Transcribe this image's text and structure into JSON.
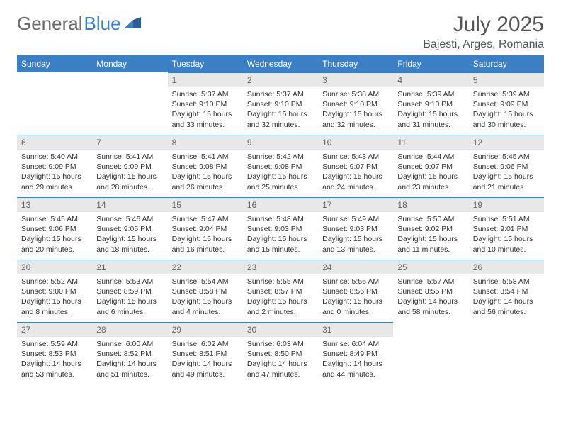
{
  "logo": {
    "part1": "General",
    "part2": "Blue"
  },
  "title": "July 2025",
  "location": "Bajesti, Arges, Romania",
  "colors": {
    "header_bg": "#3b7fc4",
    "header_text": "#ffffff",
    "daynum_bg": "#e8e8e8",
    "daynum_text": "#666666",
    "border": "#3b7fc4",
    "body_text": "#333333",
    "title_text": "#555555",
    "logo_gray": "#6b6b6b",
    "logo_blue": "#3b7fc4"
  },
  "day_header_fontsize": 12,
  "cell_fontsize": 10.5,
  "title_fontsize": 30,
  "location_fontsize": 16,
  "weekdays": [
    "Sunday",
    "Monday",
    "Tuesday",
    "Wednesday",
    "Thursday",
    "Friday",
    "Saturday"
  ],
  "weeks": [
    [
      null,
      null,
      {
        "n": "1",
        "sunrise": "5:37 AM",
        "sunset": "9:10 PM",
        "daylight": "15 hours and 33 minutes."
      },
      {
        "n": "2",
        "sunrise": "5:37 AM",
        "sunset": "9:10 PM",
        "daylight": "15 hours and 32 minutes."
      },
      {
        "n": "3",
        "sunrise": "5:38 AM",
        "sunset": "9:10 PM",
        "daylight": "15 hours and 32 minutes."
      },
      {
        "n": "4",
        "sunrise": "5:39 AM",
        "sunset": "9:10 PM",
        "daylight": "15 hours and 31 minutes."
      },
      {
        "n": "5",
        "sunrise": "5:39 AM",
        "sunset": "9:09 PM",
        "daylight": "15 hours and 30 minutes."
      }
    ],
    [
      {
        "n": "6",
        "sunrise": "5:40 AM",
        "sunset": "9:09 PM",
        "daylight": "15 hours and 29 minutes."
      },
      {
        "n": "7",
        "sunrise": "5:41 AM",
        "sunset": "9:09 PM",
        "daylight": "15 hours and 28 minutes."
      },
      {
        "n": "8",
        "sunrise": "5:41 AM",
        "sunset": "9:08 PM",
        "daylight": "15 hours and 26 minutes."
      },
      {
        "n": "9",
        "sunrise": "5:42 AM",
        "sunset": "9:08 PM",
        "daylight": "15 hours and 25 minutes."
      },
      {
        "n": "10",
        "sunrise": "5:43 AM",
        "sunset": "9:07 PM",
        "daylight": "15 hours and 24 minutes."
      },
      {
        "n": "11",
        "sunrise": "5:44 AM",
        "sunset": "9:07 PM",
        "daylight": "15 hours and 23 minutes."
      },
      {
        "n": "12",
        "sunrise": "5:45 AM",
        "sunset": "9:06 PM",
        "daylight": "15 hours and 21 minutes."
      }
    ],
    [
      {
        "n": "13",
        "sunrise": "5:45 AM",
        "sunset": "9:06 PM",
        "daylight": "15 hours and 20 minutes."
      },
      {
        "n": "14",
        "sunrise": "5:46 AM",
        "sunset": "9:05 PM",
        "daylight": "15 hours and 18 minutes."
      },
      {
        "n": "15",
        "sunrise": "5:47 AM",
        "sunset": "9:04 PM",
        "daylight": "15 hours and 16 minutes."
      },
      {
        "n": "16",
        "sunrise": "5:48 AM",
        "sunset": "9:03 PM",
        "daylight": "15 hours and 15 minutes."
      },
      {
        "n": "17",
        "sunrise": "5:49 AM",
        "sunset": "9:03 PM",
        "daylight": "15 hours and 13 minutes."
      },
      {
        "n": "18",
        "sunrise": "5:50 AM",
        "sunset": "9:02 PM",
        "daylight": "15 hours and 11 minutes."
      },
      {
        "n": "19",
        "sunrise": "5:51 AM",
        "sunset": "9:01 PM",
        "daylight": "15 hours and 10 minutes."
      }
    ],
    [
      {
        "n": "20",
        "sunrise": "5:52 AM",
        "sunset": "9:00 PM",
        "daylight": "15 hours and 8 minutes."
      },
      {
        "n": "21",
        "sunrise": "5:53 AM",
        "sunset": "8:59 PM",
        "daylight": "15 hours and 6 minutes."
      },
      {
        "n": "22",
        "sunrise": "5:54 AM",
        "sunset": "8:58 PM",
        "daylight": "15 hours and 4 minutes."
      },
      {
        "n": "23",
        "sunrise": "5:55 AM",
        "sunset": "8:57 PM",
        "daylight": "15 hours and 2 minutes."
      },
      {
        "n": "24",
        "sunrise": "5:56 AM",
        "sunset": "8:56 PM",
        "daylight": "15 hours and 0 minutes."
      },
      {
        "n": "25",
        "sunrise": "5:57 AM",
        "sunset": "8:55 PM",
        "daylight": "14 hours and 58 minutes."
      },
      {
        "n": "26",
        "sunrise": "5:58 AM",
        "sunset": "8:54 PM",
        "daylight": "14 hours and 56 minutes."
      }
    ],
    [
      {
        "n": "27",
        "sunrise": "5:59 AM",
        "sunset": "8:53 PM",
        "daylight": "14 hours and 53 minutes."
      },
      {
        "n": "28",
        "sunrise": "6:00 AM",
        "sunset": "8:52 PM",
        "daylight": "14 hours and 51 minutes."
      },
      {
        "n": "29",
        "sunrise": "6:02 AM",
        "sunset": "8:51 PM",
        "daylight": "14 hours and 49 minutes."
      },
      {
        "n": "30",
        "sunrise": "6:03 AM",
        "sunset": "8:50 PM",
        "daylight": "14 hours and 47 minutes."
      },
      {
        "n": "31",
        "sunrise": "6:04 AM",
        "sunset": "8:49 PM",
        "daylight": "14 hours and 44 minutes."
      },
      null,
      null
    ]
  ],
  "labels": {
    "sunrise": "Sunrise:",
    "sunset": "Sunset:",
    "daylight": "Daylight:"
  }
}
